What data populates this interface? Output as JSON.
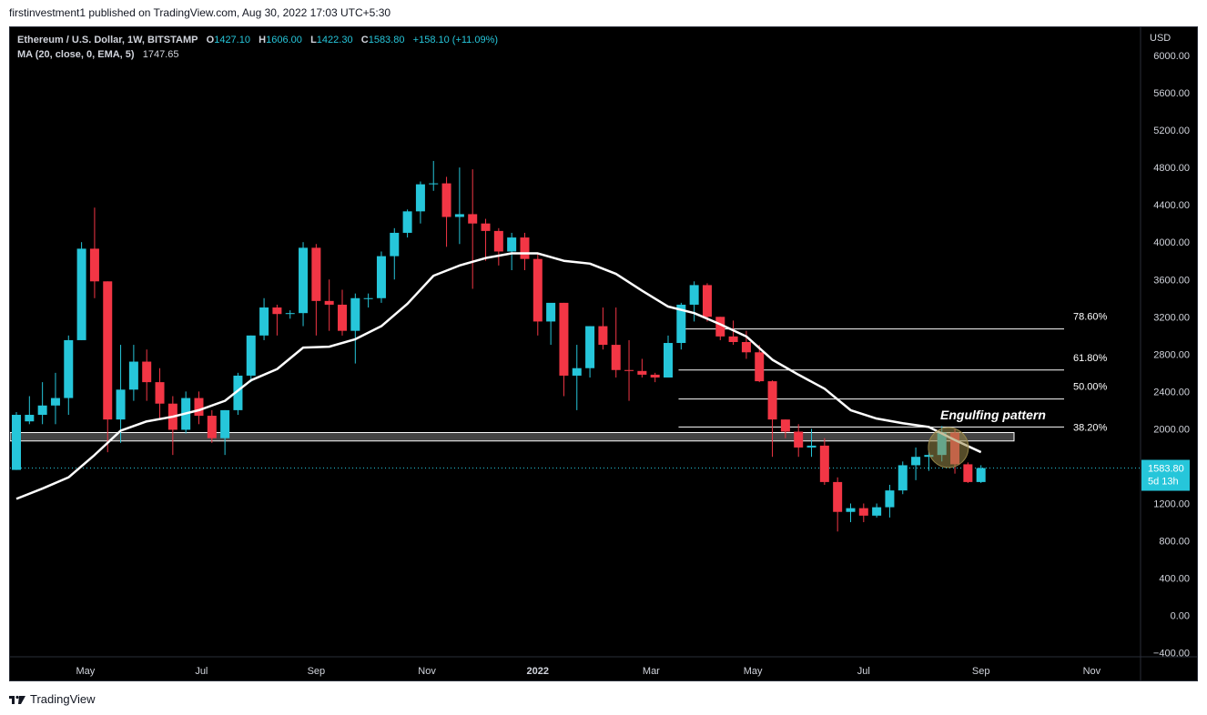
{
  "header": {
    "published_text": "firstinvestment1 published on TradingView.com, Aug 30, 2022 17:03 UTC+5:30"
  },
  "legend": {
    "symbol": "Ethereum / U.S. Dollar, 1W, BITSTAMP",
    "o_label": "O",
    "o_value": "1427.10",
    "h_label": "H",
    "h_value": "1606.00",
    "l_label": "L",
    "l_value": "1422.30",
    "c_label": "C",
    "c_value": "1583.80",
    "change": "+158.10 (+11.09%)",
    "ma_label": "MA (20, close, 0, EMA, 5)",
    "ma_value": "1747.65"
  },
  "footer": {
    "brand": "TradingView",
    "logo_icon": "tradingview-logo-icon"
  },
  "colors": {
    "up": "#26c6da",
    "down": "#f23645",
    "ma": "#ffffff",
    "background": "#000000",
    "annotation": "#ffffff",
    "highlight_circle": "#9a8a4a"
  },
  "chart_data": {
    "type": "candlestick",
    "title": "Ethereum / U.S. Dollar, 1W, BITSTAMP",
    "currency_label": "USD",
    "x_ticks": [
      "May",
      "Jul",
      "Sep",
      "Nov",
      "2022",
      "Mar",
      "May",
      "Jul",
      "Sep",
      "Nov"
    ],
    "y_ticks": [
      "6000.00",
      "5600.00",
      "5200.00",
      "4800.00",
      "4400.00",
      "4000.00",
      "3600.00",
      "3200.00",
      "2800.00",
      "2400.00",
      "2000.00",
      "1600.00",
      "1200.00",
      "800.00",
      "400.00",
      "0.00",
      "−400.00"
    ],
    "ylim": [
      -450,
      6200
    ],
    "last_price_label": "1583.80",
    "countdown_label": "5d 13h",
    "candles": [
      {
        "o": 1560,
        "h": 2180,
        "l": 1560,
        "c": 2150
      },
      {
        "o": 2080,
        "h": 2350,
        "l": 2050,
        "c": 2150
      },
      {
        "o": 2150,
        "h": 2500,
        "l": 2050,
        "c": 2250
      },
      {
        "o": 2250,
        "h": 2600,
        "l": 2050,
        "c": 2330
      },
      {
        "o": 2330,
        "h": 3000,
        "l": 2150,
        "c": 2950
      },
      {
        "o": 2950,
        "h": 4000,
        "l": 2950,
        "c": 3930
      },
      {
        "o": 3930,
        "h": 4370,
        "l": 3400,
        "c": 3580
      },
      {
        "o": 3580,
        "h": 3580,
        "l": 1750,
        "c": 2100
      },
      {
        "o": 2100,
        "h": 2900,
        "l": 1850,
        "c": 2420
      },
      {
        "o": 2420,
        "h": 2900,
        "l": 2300,
        "c": 2720
      },
      {
        "o": 2720,
        "h": 2850,
        "l": 2300,
        "c": 2500
      },
      {
        "o": 2500,
        "h": 2650,
        "l": 2100,
        "c": 2270
      },
      {
        "o": 2270,
        "h": 2350,
        "l": 1720,
        "c": 1990
      },
      {
        "o": 1990,
        "h": 2400,
        "l": 1950,
        "c": 2330
      },
      {
        "o": 2330,
        "h": 2400,
        "l": 2050,
        "c": 2140
      },
      {
        "o": 2140,
        "h": 2200,
        "l": 1850,
        "c": 1900
      },
      {
        "o": 1900,
        "h": 2200,
        "l": 1720,
        "c": 2200
      },
      {
        "o": 2200,
        "h": 2600,
        "l": 2150,
        "c": 2570
      },
      {
        "o": 2570,
        "h": 3000,
        "l": 2500,
        "c": 3000
      },
      {
        "o": 3000,
        "h": 3400,
        "l": 2950,
        "c": 3300
      },
      {
        "o": 3300,
        "h": 3330,
        "l": 3000,
        "c": 3230
      },
      {
        "o": 3230,
        "h": 3270,
        "l": 3180,
        "c": 3240
      },
      {
        "o": 3240,
        "h": 4000,
        "l": 3100,
        "c": 3940
      },
      {
        "o": 3940,
        "h": 3980,
        "l": 3000,
        "c": 3370
      },
      {
        "o": 3370,
        "h": 3600,
        "l": 3050,
        "c": 3330
      },
      {
        "o": 3330,
        "h": 3490,
        "l": 3000,
        "c": 3050
      },
      {
        "o": 3050,
        "h": 3450,
        "l": 2700,
        "c": 3400
      },
      {
        "o": 3400,
        "h": 3450,
        "l": 3300,
        "c": 3400
      },
      {
        "o": 3400,
        "h": 3900,
        "l": 3350,
        "c": 3850
      },
      {
        "o": 3850,
        "h": 4150,
        "l": 3600,
        "c": 4100
      },
      {
        "o": 4100,
        "h": 4350,
        "l": 4050,
        "c": 4330
      },
      {
        "o": 4330,
        "h": 4650,
        "l": 4200,
        "c": 4620
      },
      {
        "o": 4620,
        "h": 4870,
        "l": 4550,
        "c": 4630
      },
      {
        "o": 4630,
        "h": 4700,
        "l": 3950,
        "c": 4270
      },
      {
        "o": 4270,
        "h": 4800,
        "l": 3980,
        "c": 4300
      },
      {
        "o": 4300,
        "h": 4780,
        "l": 3500,
        "c": 4200
      },
      {
        "o": 4200,
        "h": 4250,
        "l": 3800,
        "c": 4120
      },
      {
        "o": 4120,
        "h": 4150,
        "l": 3750,
        "c": 3900
      },
      {
        "o": 3900,
        "h": 4100,
        "l": 3700,
        "c": 4050
      },
      {
        "o": 4050,
        "h": 4100,
        "l": 3700,
        "c": 3820
      },
      {
        "o": 3820,
        "h": 3880,
        "l": 3000,
        "c": 3150
      },
      {
        "o": 3150,
        "h": 3300,
        "l": 2900,
        "c": 3350
      },
      {
        "o": 3350,
        "h": 3350,
        "l": 2350,
        "c": 2570
      },
      {
        "o": 2570,
        "h": 2900,
        "l": 2200,
        "c": 2650
      },
      {
        "o": 2650,
        "h": 3100,
        "l": 2550,
        "c": 3100
      },
      {
        "o": 3100,
        "h": 3300,
        "l": 2850,
        "c": 2900
      },
      {
        "o": 2900,
        "h": 3300,
        "l": 2550,
        "c": 2630
      },
      {
        "o": 2630,
        "h": 2950,
        "l": 2300,
        "c": 2620
      },
      {
        "o": 2620,
        "h": 2750,
        "l": 2550,
        "c": 2580
      },
      {
        "o": 2580,
        "h": 2600,
        "l": 2500,
        "c": 2550
      },
      {
        "o": 2550,
        "h": 3000,
        "l": 2550,
        "c": 2920
      },
      {
        "o": 2920,
        "h": 3350,
        "l": 2850,
        "c": 3330
      },
      {
        "o": 3330,
        "h": 3580,
        "l": 3150,
        "c": 3540
      },
      {
        "o": 3540,
        "h": 3560,
        "l": 3150,
        "c": 3200
      },
      {
        "o": 3200,
        "h": 3200,
        "l": 2950,
        "c": 2990
      },
      {
        "o": 2990,
        "h": 3160,
        "l": 2900,
        "c": 2930
      },
      {
        "o": 2930,
        "h": 3050,
        "l": 2750,
        "c": 2820
      },
      {
        "o": 2820,
        "h": 2900,
        "l": 2500,
        "c": 2510
      },
      {
        "o": 2510,
        "h": 2520,
        "l": 1700,
        "c": 2100
      },
      {
        "o": 2100,
        "h": 2100,
        "l": 1900,
        "c": 1970
      },
      {
        "o": 1970,
        "h": 2050,
        "l": 1700,
        "c": 1800
      },
      {
        "o": 1800,
        "h": 2000,
        "l": 1700,
        "c": 1820
      },
      {
        "o": 1820,
        "h": 1900,
        "l": 1400,
        "c": 1430
      },
      {
        "o": 1430,
        "h": 1480,
        "l": 900,
        "c": 1110
      },
      {
        "o": 1110,
        "h": 1200,
        "l": 1000,
        "c": 1150
      },
      {
        "o": 1150,
        "h": 1200,
        "l": 1000,
        "c": 1070
      },
      {
        "o": 1070,
        "h": 1200,
        "l": 1050,
        "c": 1160
      },
      {
        "o": 1160,
        "h": 1400,
        "l": 1050,
        "c": 1340
      },
      {
        "o": 1340,
        "h": 1650,
        "l": 1300,
        "c": 1610
      },
      {
        "o": 1610,
        "h": 1800,
        "l": 1450,
        "c": 1700
      },
      {
        "o": 1700,
        "h": 1750,
        "l": 1550,
        "c": 1720
      },
      {
        "o": 1720,
        "h": 2030,
        "l": 1650,
        "c": 1960
      },
      {
        "o": 1960,
        "h": 2000,
        "l": 1520,
        "c": 1620
      },
      {
        "o": 1620,
        "h": 1640,
        "l": 1420,
        "c": 1430
      },
      {
        "o": 1430,
        "h": 1610,
        "l": 1420,
        "c": 1580
      }
    ],
    "ma_series": [
      {
        "i": 0,
        "v": 1250
      },
      {
        "i": 2,
        "v": 1360
      },
      {
        "i": 4,
        "v": 1480
      },
      {
        "i": 6,
        "v": 1720
      },
      {
        "i": 8,
        "v": 1980
      },
      {
        "i": 10,
        "v": 2080
      },
      {
        "i": 12,
        "v": 2130
      },
      {
        "i": 14,
        "v": 2200
      },
      {
        "i": 16,
        "v": 2300
      },
      {
        "i": 18,
        "v": 2520
      },
      {
        "i": 20,
        "v": 2640
      },
      {
        "i": 22,
        "v": 2870
      },
      {
        "i": 24,
        "v": 2880
      },
      {
        "i": 26,
        "v": 2960
      },
      {
        "i": 28,
        "v": 3100
      },
      {
        "i": 30,
        "v": 3340
      },
      {
        "i": 32,
        "v": 3640
      },
      {
        "i": 34,
        "v": 3750
      },
      {
        "i": 36,
        "v": 3830
      },
      {
        "i": 38,
        "v": 3880
      },
      {
        "i": 40,
        "v": 3880
      },
      {
        "i": 42,
        "v": 3800
      },
      {
        "i": 44,
        "v": 3770
      },
      {
        "i": 46,
        "v": 3660
      },
      {
        "i": 48,
        "v": 3480
      },
      {
        "i": 50,
        "v": 3310
      },
      {
        "i": 52,
        "v": 3240
      },
      {
        "i": 54,
        "v": 3120
      },
      {
        "i": 56,
        "v": 2990
      },
      {
        "i": 58,
        "v": 2740
      },
      {
        "i": 60,
        "v": 2580
      },
      {
        "i": 62,
        "v": 2430
      },
      {
        "i": 64,
        "v": 2200
      },
      {
        "i": 66,
        "v": 2110
      },
      {
        "i": 68,
        "v": 2060
      },
      {
        "i": 70,
        "v": 2020
      },
      {
        "i": 72,
        "v": 1880
      },
      {
        "i": 74,
        "v": 1750
      }
    ],
    "fib_levels": [
      {
        "label": "78.60%",
        "value": 3070
      },
      {
        "label": "61.80%",
        "value": 2630
      },
      {
        "label": "50.00%",
        "value": 2320
      },
      {
        "label": "38.20%",
        "value": 2020
      }
    ],
    "support_zone": {
      "low": 1870,
      "high": 1960
    },
    "annotation_text": "Engulfing pattern"
  }
}
